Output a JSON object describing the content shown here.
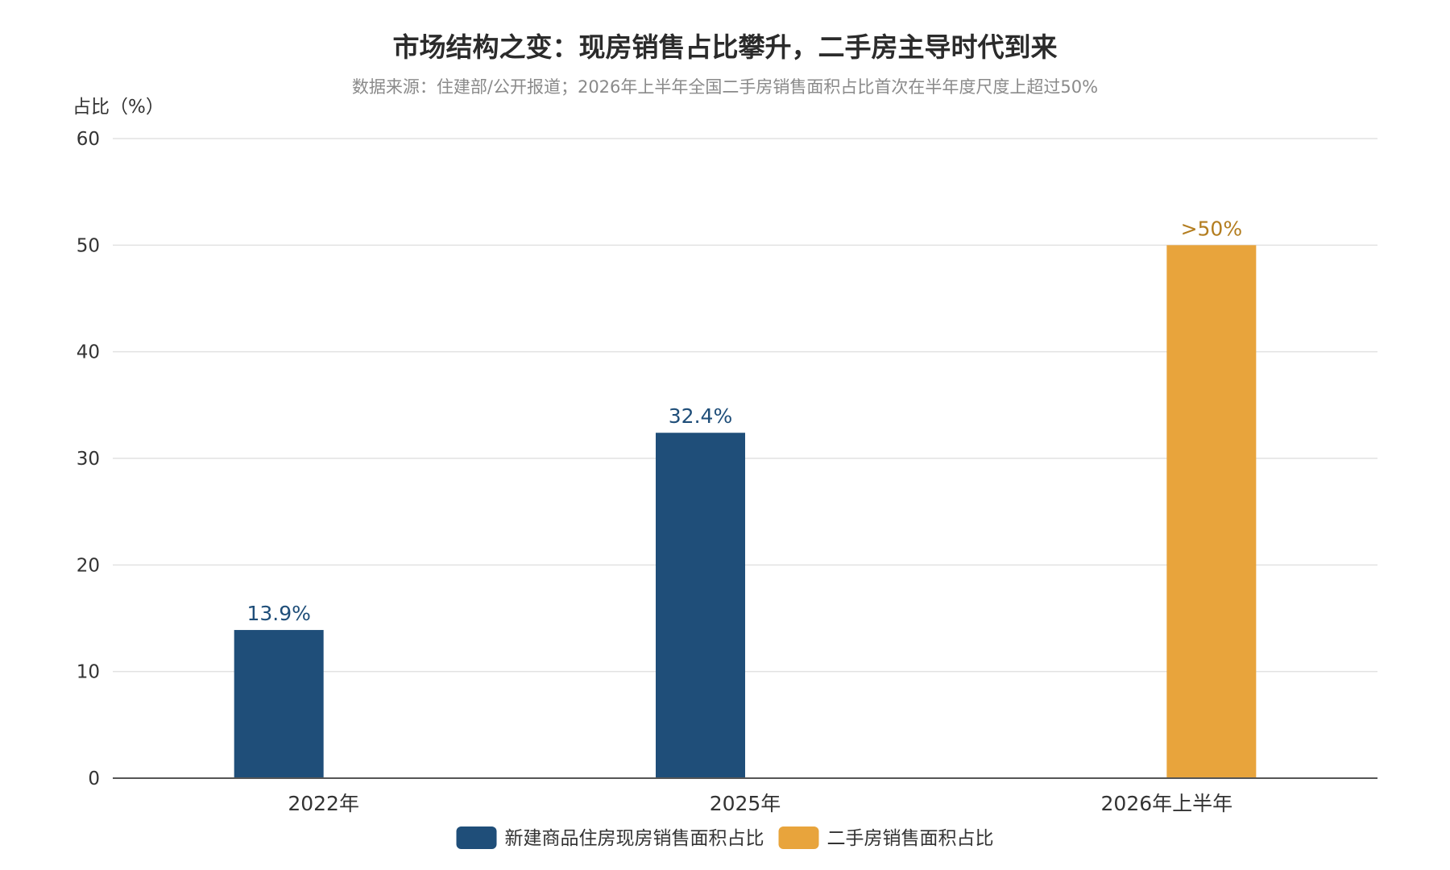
{
  "chart_data": {
    "type": "bar",
    "title": "市场结构之变：现房销售占比攀升，二手房主导时代到来",
    "subtitle": "数据来源：住建部/公开报道；2026年上半年全国二手房销售面积占比首次在半年度尺度上超过50%",
    "ylabel": "占比（%）",
    "xlabel": "",
    "ylim": [
      0,
      60
    ],
    "yticks": [
      0,
      10,
      20,
      30,
      40,
      50,
      60
    ],
    "grid": true,
    "legend_position": "bottom",
    "categories": [
      "2022年",
      "2025年",
      "2026年上半年"
    ],
    "series": [
      {
        "name": "新建商品住房现房销售面积占比",
        "color": "#1f4e79",
        "values": [
          13.9,
          32.4,
          null
        ],
        "labels": [
          "13.9%",
          "32.4%",
          ""
        ]
      },
      {
        "name": "二手房销售面积占比",
        "color": "#e8a43c",
        "values": [
          null,
          null,
          50
        ],
        "labels": [
          "",
          "",
          ">50%"
        ]
      }
    ]
  }
}
